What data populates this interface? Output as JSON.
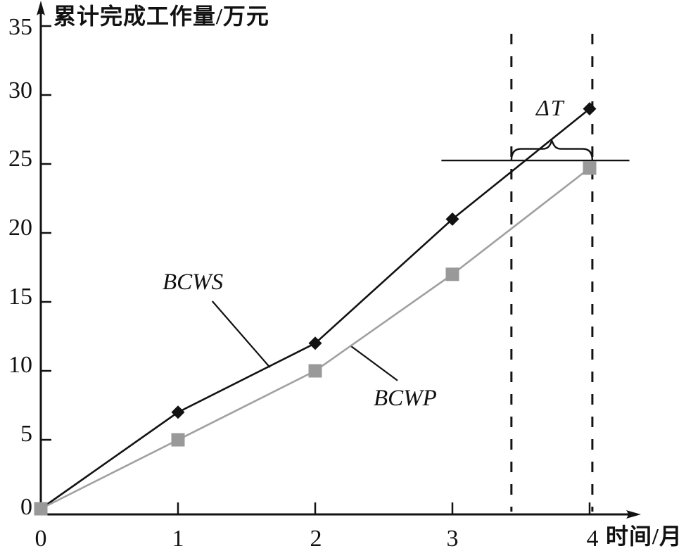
{
  "chart_data": {
    "type": "line",
    "title": "",
    "ylabel": "累计完成工作量/万元",
    "xlabel": "时间/月",
    "x": [
      0,
      1,
      2,
      3,
      4
    ],
    "series": [
      {
        "name": "BCWS",
        "marker": "diamond",
        "color": "#121212",
        "values": [
          0,
          7,
          12,
          21,
          29
        ]
      },
      {
        "name": "BCWP",
        "marker": "square",
        "color": "#a0a0a0",
        "values": [
          0,
          5,
          10,
          17,
          24.7
        ]
      }
    ],
    "xticks": [
      0,
      1,
      2,
      3,
      4
    ],
    "yticks": [
      35,
      30,
      25,
      20,
      15,
      10,
      5,
      0
    ],
    "xtick_labels": [
      "0",
      "1",
      "2",
      "3",
      "4"
    ],
    "ytick_labels": [
      "35",
      "30",
      "25",
      "20",
      "15",
      "10",
      "5",
      "0"
    ],
    "xlim": [
      0,
      4.37
    ],
    "ylim": [
      0,
      36.6
    ],
    "grid": false,
    "legend": "none",
    "annotations": {
      "delta_t_label": "ΔT",
      "dashed_vlines_x": [
        3.43,
        4.02
      ],
      "hline": {
        "y": 25.25,
        "x_from": 2.92,
        "x_to": 4.29
      },
      "brace": {
        "x_from": 3.43,
        "x_to": 4.02,
        "y": 25.25
      },
      "series_labels": [
        {
          "text": "BCWS",
          "leader_from_x": 1.25,
          "leader_from_y": 15.05,
          "leader_to_x": 1.67,
          "leader_to_y": 10.25
        },
        {
          "text": "BCWP",
          "leader_from_x": 2.26,
          "leader_from_y": 11.8,
          "leader_to_x": 2.6,
          "leader_to_y": 9.3
        }
      ]
    },
    "colors": {
      "axis": "#121212",
      "bcws": "#121212",
      "bcwp_line": "#a0a0a0",
      "bcwp_marker": "#999999",
      "background": "#ffffff"
    }
  }
}
